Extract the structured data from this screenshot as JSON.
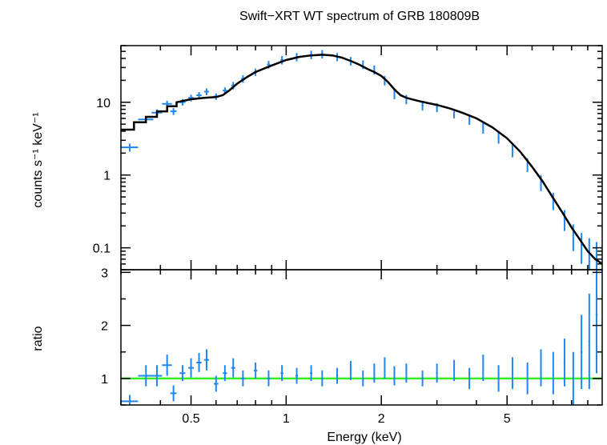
{
  "chart_data": [
    {
      "type": "scatter",
      "title": "Swift−XRT WT spectrum of GRB 180809B",
      "xlabel": "",
      "ylabel": "counts s⁻¹ keV⁻¹",
      "xscale": "log",
      "yscale": "log",
      "xlim": [
        0.3,
        10
      ],
      "ylim": [
        0.05,
        60
      ],
      "yticks": [
        "0.1",
        "1",
        "10"
      ],
      "grid": false,
      "series": [
        {
          "kind": "data-points",
          "color": "#1e88f0",
          "x": [
            0.32,
            0.36,
            0.39,
            0.42,
            0.44,
            0.47,
            0.5,
            0.53,
            0.56,
            0.6,
            0.64,
            0.68,
            0.73,
            0.8,
            0.88,
            0.97,
            1.08,
            1.2,
            1.3,
            1.45,
            1.6,
            1.75,
            1.9,
            2.05,
            2.2,
            2.4,
            2.7,
            3.0,
            3.4,
            3.8,
            4.2,
            4.7,
            5.2,
            5.8,
            6.4,
            7.0,
            7.6,
            8.1,
            8.6,
            9.1,
            9.6
          ],
          "y": [
            2.4,
            5.8,
            7.2,
            9.5,
            7.5,
            10.0,
            11.5,
            12.5,
            14.0,
            12.0,
            14.5,
            17.0,
            21.0,
            26.0,
            33.0,
            38.0,
            42.0,
            45.0,
            46.0,
            42.0,
            37.0,
            33.0,
            28.0,
            20.0,
            13.0,
            11.0,
            9.0,
            8.5,
            7.0,
            5.8,
            4.5,
            3.3,
            2.2,
            1.4,
            0.8,
            0.45,
            0.25,
            0.15,
            0.11,
            0.09,
            0.08
          ],
          "xerr": [
            0.02,
            0.02,
            0.015,
            0.015,
            0.01,
            0.01,
            0.01,
            0.01,
            0.01,
            0.01,
            0.01,
            0.01,
            0.01,
            0.01,
            0.01,
            0.01,
            0.01,
            0.01,
            0.01,
            0.01,
            0.01,
            0.01,
            0.01,
            0.01,
            0.01,
            0.01,
            0.02,
            0.02,
            0.02,
            0.02,
            0.02,
            0.03,
            0.03,
            0.03,
            0.04,
            0.04,
            0.05,
            0.05,
            0.06,
            0.06,
            0.07
          ],
          "yerr": [
            0.3,
            0.6,
            0.8,
            1.0,
            0.8,
            1.0,
            1.2,
            1.3,
            1.5,
            1.2,
            1.5,
            2.0,
            2.5,
            3.0,
            4.0,
            5.0,
            5.5,
            6.0,
            6.0,
            5.5,
            5.0,
            4.5,
            4.0,
            3.0,
            2.0,
            1.6,
            1.3,
            1.2,
            1.0,
            0.9,
            0.8,
            0.6,
            0.45,
            0.3,
            0.2,
            0.12,
            0.08,
            0.06,
            0.05,
            0.045,
            0.04
          ]
        },
        {
          "kind": "model",
          "color": "#000000",
          "x": [
            0.3,
            0.33,
            0.33,
            0.36,
            0.36,
            0.39,
            0.39,
            0.42,
            0.42,
            0.45,
            0.45,
            0.5,
            0.55,
            0.6,
            0.63,
            0.66,
            0.7,
            0.75,
            0.8,
            0.9,
            1.0,
            1.1,
            1.2,
            1.3,
            1.4,
            1.5,
            1.6,
            1.7,
            1.8,
            1.9,
            2.0,
            2.1,
            2.2,
            2.3,
            2.4,
            2.6,
            2.8,
            3.0,
            3.3,
            3.6,
            4.0,
            4.5,
            5.0,
            5.5,
            6.0,
            6.5,
            7.0,
            7.5,
            8.0,
            8.5,
            9.0,
            9.5,
            10.0
          ],
          "y": [
            4.2,
            4.2,
            5.3,
            5.3,
            6.3,
            6.3,
            7.5,
            7.5,
            8.8,
            8.8,
            10.0,
            11.0,
            11.5,
            11.8,
            12.5,
            14.5,
            18.0,
            22.0,
            26.0,
            32.0,
            38.0,
            42.0,
            44.0,
            45.0,
            44.0,
            41.0,
            37.0,
            33.0,
            29.0,
            26.0,
            23.0,
            19.0,
            15.0,
            12.5,
            11.5,
            10.5,
            9.8,
            9.2,
            8.2,
            7.2,
            6.0,
            4.5,
            3.2,
            2.1,
            1.3,
            0.8,
            0.48,
            0.3,
            0.19,
            0.13,
            0.09,
            0.07,
            0.06
          ]
        }
      ]
    },
    {
      "type": "scatter",
      "xlabel": "Energy (keV)",
      "ylabel": "ratio",
      "xscale": "log",
      "xlim": [
        0.3,
        10
      ],
      "ylim": [
        0.5,
        3.05
      ],
      "xticks": [
        "0.5",
        "1",
        "2",
        "5"
      ],
      "yticks": [
        "1",
        "2",
        "3"
      ],
      "grid": false,
      "reference_line": {
        "y": 1,
        "color": "#33ee22"
      },
      "series": [
        {
          "kind": "ratio-points",
          "color": "#1e88f0",
          "x": [
            0.32,
            0.36,
            0.39,
            0.42,
            0.44,
            0.47,
            0.5,
            0.53,
            0.56,
            0.6,
            0.64,
            0.68,
            0.73,
            0.8,
            0.88,
            0.97,
            1.08,
            1.2,
            1.3,
            1.45,
            1.6,
            1.75,
            1.9,
            2.05,
            2.2,
            2.4,
            2.7,
            3.0,
            3.4,
            3.8,
            4.2,
            4.7,
            5.2,
            5.8,
            6.4,
            7.0,
            7.6,
            8.1,
            8.6,
            9.1,
            9.6
          ],
          "y": [
            0.57,
            1.05,
            1.05,
            1.25,
            0.72,
            1.1,
            1.2,
            1.3,
            1.35,
            0.9,
            1.1,
            1.2,
            1.0,
            1.15,
            1.0,
            1.1,
            1.05,
            1.1,
            1.0,
            1.05,
            1.15,
            1.0,
            1.1,
            1.2,
            1.05,
            1.1,
            1.0,
            1.1,
            1.15,
            1.0,
            1.2,
            1.0,
            1.1,
            1.0,
            1.2,
            1.1,
            1.3,
            1.0,
            1.5,
            1.7,
            2.2
          ],
          "xerr": [
            0.02,
            0.02,
            0.015,
            0.015,
            0.01,
            0.01,
            0.01,
            0.01,
            0.01,
            0.01,
            0.01,
            0.01,
            0.01,
            0.01,
            0.01,
            0.01,
            0.01,
            0.01,
            0.01,
            0.01,
            0.01,
            0.01,
            0.01,
            0.01,
            0.01,
            0.01,
            0.02,
            0.02,
            0.02,
            0.02,
            0.02,
            0.03,
            0.03,
            0.03,
            0.04,
            0.04,
            0.05,
            0.05,
            0.06,
            0.06,
            0.07
          ],
          "yerr": [
            0.12,
            0.2,
            0.2,
            0.2,
            0.15,
            0.15,
            0.18,
            0.18,
            0.2,
            0.15,
            0.15,
            0.18,
            0.15,
            0.15,
            0.15,
            0.15,
            0.15,
            0.15,
            0.15,
            0.15,
            0.18,
            0.15,
            0.18,
            0.2,
            0.18,
            0.18,
            0.15,
            0.18,
            0.2,
            0.2,
            0.25,
            0.25,
            0.3,
            0.3,
            0.35,
            0.4,
            0.45,
            0.5,
            0.7,
            0.9,
            1.1
          ]
        }
      ]
    }
  ]
}
